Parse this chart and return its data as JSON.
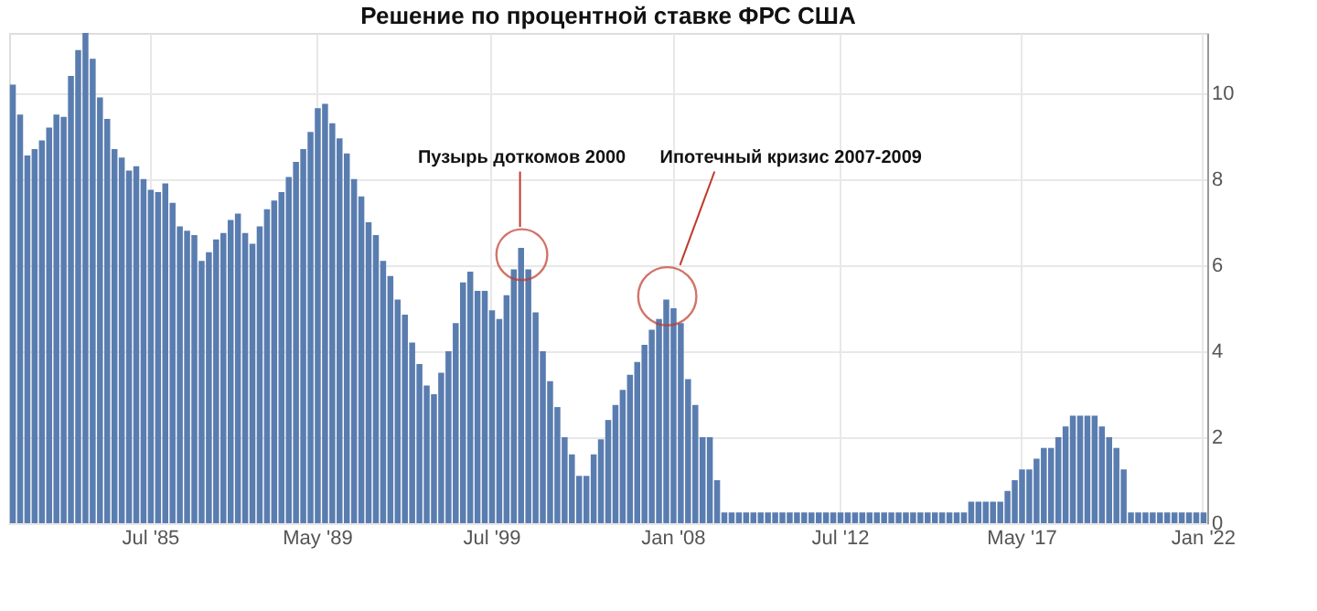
{
  "chart_data": {
    "type": "bar",
    "title": "Решение по процентной ставке ФРС США",
    "categories": [
      null,
      null,
      null,
      null,
      null,
      null,
      null,
      null,
      null,
      null,
      null,
      null,
      null,
      null,
      null,
      null,
      null,
      null,
      null,
      "Jul '85",
      null,
      null,
      null,
      null,
      null,
      null,
      null,
      null,
      null,
      null,
      null,
      null,
      null,
      null,
      null,
      null,
      null,
      null,
      null,
      null,
      null,
      null,
      "May '89",
      null,
      null,
      null,
      null,
      null,
      null,
      null,
      null,
      null,
      null,
      null,
      null,
      null,
      null,
      null,
      null,
      null,
      null,
      null,
      null,
      null,
      null,
      null,
      "Jul '99",
      null,
      null,
      null,
      null,
      null,
      null,
      null,
      null,
      null,
      null,
      null,
      null,
      null,
      null,
      null,
      null,
      null,
      null,
      null,
      null,
      null,
      null,
      null,
      null,
      "Jan '08",
      null,
      null,
      null,
      null,
      null,
      null,
      null,
      null,
      null,
      null,
      null,
      null,
      null,
      null,
      null,
      null,
      null,
      null,
      null,
      null,
      null,
      null,
      "Jul '12",
      null,
      null,
      null,
      null,
      null,
      null,
      null,
      null,
      null,
      null,
      null,
      null,
      null,
      null,
      null,
      null,
      null,
      null,
      null,
      null,
      null,
      null,
      null,
      null,
      "May '17",
      null,
      null,
      null,
      null,
      null,
      null,
      null,
      null,
      null,
      null,
      null,
      null,
      null,
      null,
      null,
      null,
      null,
      null,
      null,
      null,
      null,
      null,
      null,
      null,
      "Jan '22"
    ],
    "values": [
      10.2,
      9.5,
      8.55,
      8.7,
      8.9,
      9.2,
      9.5,
      9.45,
      10.4,
      11.0,
      11.4,
      10.8,
      9.9,
      9.4,
      8.7,
      8.5,
      8.2,
      8.3,
      8.0,
      7.75,
      7.7,
      7.9,
      7.45,
      6.9,
      6.8,
      6.7,
      6.1,
      6.3,
      6.6,
      6.75,
      7.05,
      7.2,
      6.75,
      6.5,
      6.9,
      7.3,
      7.5,
      7.7,
      8.05,
      8.4,
      8.7,
      9.1,
      9.65,
      9.75,
      9.3,
      8.95,
      8.6,
      8.0,
      7.6,
      7.0,
      6.7,
      6.1,
      5.75,
      5.2,
      4.85,
      4.2,
      3.7,
      3.2,
      3.0,
      3.5,
      4.0,
      4.65,
      5.6,
      5.85,
      5.4,
      5.4,
      4.95,
      4.75,
      5.3,
      5.9,
      6.4,
      5.9,
      4.9,
      4.0,
      3.3,
      2.7,
      2.0,
      1.6,
      1.1,
      1.1,
      1.6,
      1.95,
      2.4,
      2.75,
      3.1,
      3.45,
      3.75,
      4.15,
      4.5,
      4.75,
      5.2,
      5.0,
      4.65,
      3.35,
      2.75,
      2.0,
      2.0,
      1.0,
      0.25,
      0.25,
      0.25,
      0.25,
      0.25,
      0.25,
      0.25,
      0.25,
      0.25,
      0.25,
      0.25,
      0.25,
      0.25,
      0.25,
      0.25,
      0.25,
      0.25,
      0.25,
      0.25,
      0.25,
      0.25,
      0.25,
      0.25,
      0.25,
      0.25,
      0.25,
      0.25,
      0.25,
      0.25,
      0.25,
      0.25,
      0.25,
      0.25,
      0.25,
      0.5,
      0.5,
      0.5,
      0.5,
      0.5,
      0.75,
      1.0,
      1.25,
      1.25,
      1.5,
      1.75,
      1.75,
      2.0,
      2.25,
      2.5,
      2.5,
      2.5,
      2.5,
      2.25,
      2.0,
      1.75,
      1.25,
      0.25,
      0.25,
      0.25,
      0.25,
      0.25,
      0.25,
      0.25,
      0.25,
      0.25,
      0.25,
      0.25
    ],
    "color": "#5a7db0",
    "ylim": [
      0,
      11.4
    ],
    "yticks": [
      0,
      2,
      4,
      6,
      8,
      10
    ],
    "grid": true,
    "annotations": [
      "Пузырь доткомов 2000",
      "Ипотечный кризис 2007-2009"
    ]
  }
}
